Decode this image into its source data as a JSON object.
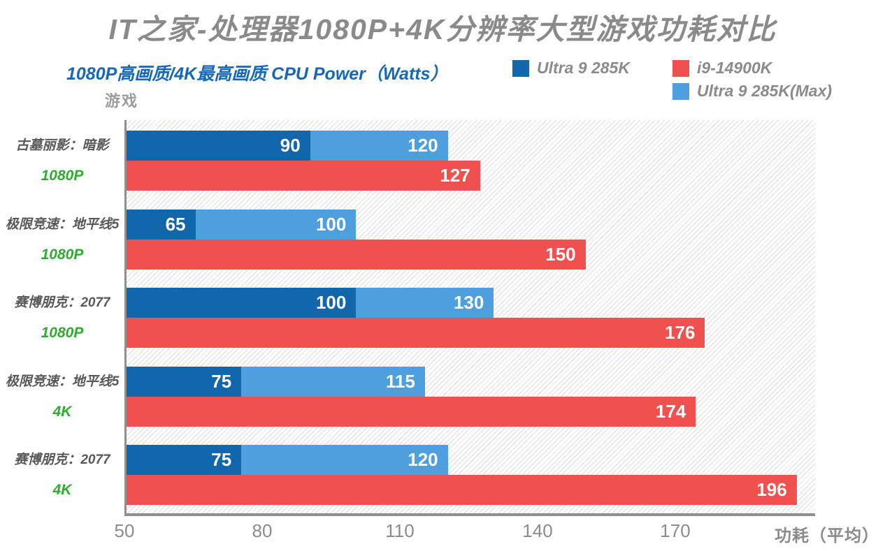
{
  "header": {
    "title": "IT之家-处理器1080P+4K分辨率大型游戏功耗对比",
    "subtitle": "1080P高画质/4K最高画质 CPU Power（Watts）"
  },
  "legend": {
    "items": [
      {
        "label": "Ultra 9 285K",
        "color": "#1266ab"
      },
      {
        "label": "i9-14900K",
        "color": "#f0514f"
      },
      {
        "label": "Ultra 9 285K(Max)",
        "color": "#4da0dd"
      }
    ]
  },
  "chart_data": {
    "type": "bar",
    "orientation": "horizontal",
    "title": "IT之家-处理器1080P+4K分辨率大型游戏功耗对比",
    "subtitle": "1080P高画质/4K最高画质 CPU Power（Watts）",
    "xlabel": "功耗（平均）",
    "ylabel": "游戏",
    "xlim": [
      50,
      200
    ],
    "xticks": [
      50,
      80,
      110,
      140,
      170
    ],
    "grid": false,
    "legend_position": "top-right",
    "plot_background": "diagonal-hatch",
    "categories": [
      {
        "game": "古墓丽影：暗影",
        "resolution": "1080P"
      },
      {
        "game": "极限竞速：地平线5",
        "resolution": "1080P"
      },
      {
        "game": "赛博朋克：2077",
        "resolution": "1080P"
      },
      {
        "game": "极限竞速：地平线5",
        "resolution": "4K"
      },
      {
        "game": "赛博朋克：2077",
        "resolution": "4K"
      }
    ],
    "series": [
      {
        "name": "Ultra 9 285K",
        "color": "#1266ab",
        "values": [
          90,
          65,
          100,
          75,
          75
        ]
      },
      {
        "name": "Ultra 9 285K(Max)",
        "color": "#4da0dd",
        "values": [
          120,
          100,
          130,
          115,
          120
        ]
      },
      {
        "name": "i9-14900K",
        "color": "#f0514f",
        "values": [
          127,
          150,
          176,
          174,
          196
        ]
      }
    ]
  },
  "colors": {
    "title_gray": "#8a8a8a",
    "subtitle_blue": "#1568b8",
    "game_label_gray": "#57585a",
    "resolution_green": "#2fab30",
    "axis_line_gray": "#8f8f8f",
    "tick_label_gray": "#8b8b8b",
    "hatch_line_gray": "#dcdcdc",
    "bar_value_text": "#ffffff"
  }
}
